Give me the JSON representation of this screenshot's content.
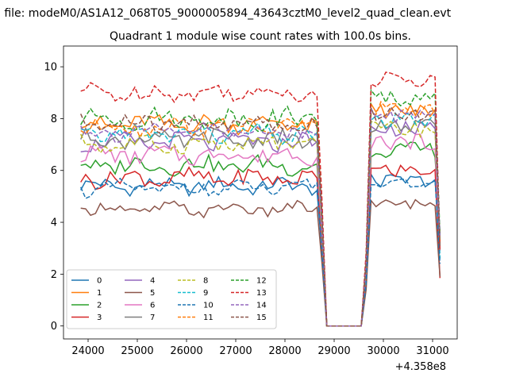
{
  "suptitle": "n file: modeM0/AS1A12_068T05_9000005894_43643cztM0_level2_quad_clean.evt",
  "chart_data": {
    "type": "line",
    "title": "Quadrant 1 module wise count rates with 100.0s bins.",
    "xlabel": "",
    "ylabel": "",
    "x_offset_label": "+4.358e8",
    "xlim": [
      23500,
      31500
    ],
    "ylim": [
      -0.5,
      10.8
    ],
    "x_ticks": [
      24000,
      25000,
      26000,
      27000,
      28000,
      29000,
      30000,
      31000
    ],
    "x_tick_labels": [
      "24000",
      "25000",
      "26000",
      "27000",
      "28000",
      "29000",
      "30000",
      "31000"
    ],
    "y_ticks": [
      0,
      2,
      4,
      6,
      8,
      10
    ],
    "y_tick_labels": [
      "0",
      "2",
      "4",
      "6",
      "8",
      "10"
    ],
    "grid": false,
    "legend_position": "lower-left",
    "legend_columns": 4,
    "segments": [
      {
        "x_start": 23850,
        "x_end": 28750,
        "step": 100
      },
      {
        "x_start": 28850,
        "x_end": 29550,
        "step": 100,
        "zero": true
      },
      {
        "x_start": 29650,
        "x_end": 31150,
        "step": 100
      }
    ],
    "series": [
      {
        "name": "0",
        "color": "#1f77b4",
        "dash": "solid",
        "level1": 5.4,
        "level2": 5.6,
        "ripple": 0.25,
        "end": 3.0
      },
      {
        "name": "1",
        "color": "#ff7f0e",
        "dash": "solid",
        "level1": 7.8,
        "level2": 8.3,
        "ripple": 0.3,
        "end": 3.2
      },
      {
        "name": "2",
        "color": "#2ca02c",
        "dash": "solid",
        "level1": 6.2,
        "level2": 6.8,
        "ripple": 0.3,
        "end": 3.6
      },
      {
        "name": "3",
        "color": "#d62728",
        "dash": "solid",
        "level1": 5.7,
        "level2": 6.0,
        "ripple": 0.3,
        "end": 1.85
      },
      {
        "name": "4",
        "color": "#9467bd",
        "dash": "solid",
        "level1": 7.1,
        "level2": 7.6,
        "ripple": 0.3,
        "end": 3.3
      },
      {
        "name": "5",
        "color": "#8c564b",
        "dash": "solid",
        "level1": 4.5,
        "level2": 4.7,
        "ripple": 0.2,
        "end": 1.9
      },
      {
        "name": "6",
        "color": "#e377c2",
        "dash": "solid",
        "level1": 6.6,
        "level2": 7.1,
        "ripple": 0.3,
        "end": 2.9
      },
      {
        "name": "7",
        "color": "#7f7f7f",
        "dash": "solid",
        "level1": 7.2,
        "level2": 7.7,
        "ripple": 0.3,
        "end": 3.1
      },
      {
        "name": "8",
        "color": "#bcbd22",
        "dash": "dashed",
        "level1": 7.0,
        "level2": 7.6,
        "ripple": 0.3,
        "end": 3.3
      },
      {
        "name": "9",
        "color": "#17becf",
        "dash": "dashed",
        "level1": 7.4,
        "level2": 7.9,
        "ripple": 0.3,
        "end": 2.6
      },
      {
        "name": "10",
        "color": "#1f77b4",
        "dash": "dashed",
        "level1": 5.3,
        "level2": 5.5,
        "ripple": 0.25,
        "end": 2.4
      },
      {
        "name": "11",
        "color": "#ff7f0e",
        "dash": "dashed",
        "level1": 7.7,
        "level2": 8.4,
        "ripple": 0.3,
        "end": 3.1
      },
      {
        "name": "12",
        "color": "#2ca02c",
        "dash": "dashed",
        "level1": 8.0,
        "level2": 8.8,
        "ripple": 0.35,
        "end": 3.5
      },
      {
        "name": "13",
        "color": "#d62728",
        "dash": "dashed",
        "level1": 9.0,
        "level2": 9.5,
        "ripple": 0.3,
        "end": 2.9
      },
      {
        "name": "14",
        "color": "#9467bd",
        "dash": "dashed",
        "level1": 7.5,
        "level2": 8.1,
        "ripple": 0.3,
        "end": 3.4
      },
      {
        "name": "15",
        "color": "#8c564b",
        "dash": "dashed",
        "level1": 7.8,
        "level2": 8.2,
        "ripple": 0.3,
        "end": 3.0
      }
    ]
  }
}
